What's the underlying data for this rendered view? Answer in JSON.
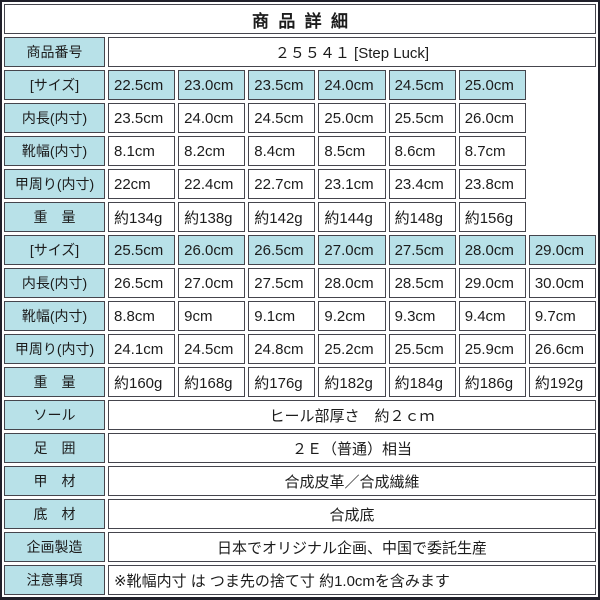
{
  "title": "商品詳細",
  "colors": {
    "header_cell_bg": "#b8e1e8",
    "cell_border": "#45454d",
    "outer_border": "#20202a",
    "text": "#1c1c1c",
    "value_cell_bg": "#ffffff"
  },
  "product_number": {
    "label": "商品番号",
    "value": "２５５４１ [Step Luck]"
  },
  "size_block_small": {
    "size": {
      "label": "[サイズ]",
      "values": [
        "22.5cm",
        "23.0cm",
        "23.5cm",
        "24.0cm",
        "24.5cm",
        "25.0cm"
      ]
    },
    "inner_length": {
      "label": "内長(内寸)",
      "values": [
        "23.5cm",
        "24.0cm",
        "24.5cm",
        "25.0cm",
        "25.5cm",
        "26.0cm"
      ]
    },
    "shoe_width": {
      "label": "靴幅(内寸)",
      "values": [
        "8.1cm",
        "8.2cm",
        "8.4cm",
        "8.5cm",
        "8.6cm",
        "8.7cm"
      ]
    },
    "instep_girth": {
      "label": "甲周り(内寸)",
      "values": [
        "22cm",
        "22.4cm",
        "22.7cm",
        "23.1cm",
        "23.4cm",
        "23.8cm"
      ]
    },
    "weight": {
      "label": "重　量",
      "values": [
        "約134g",
        "約138g",
        "約142g",
        "約144g",
        "約148g",
        "約156g"
      ]
    }
  },
  "size_block_large": {
    "size": {
      "label": "[サイズ]",
      "values": [
        "25.5cm",
        "26.0cm",
        "26.5cm",
        "27.0cm",
        "27.5cm",
        "28.0cm",
        "29.0cm"
      ]
    },
    "inner_length": {
      "label": "内長(内寸)",
      "values": [
        "26.5cm",
        "27.0cm",
        "27.5cm",
        "28.0cm",
        "28.5cm",
        "29.0cm",
        "30.0cm"
      ]
    },
    "shoe_width": {
      "label": "靴幅(内寸)",
      "values": [
        "8.8cm",
        "9cm",
        "9.1cm",
        "9.2cm",
        "9.3cm",
        "9.4cm",
        "9.7cm"
      ]
    },
    "instep_girth": {
      "label": "甲周り(内寸)",
      "values": [
        "24.1cm",
        "24.5cm",
        "24.8cm",
        "25.2cm",
        "25.5cm",
        "25.9cm",
        "26.6cm"
      ]
    },
    "weight": {
      "label": "重　量",
      "values": [
        "約160g",
        "約168g",
        "約176g",
        "約182g",
        "約184g",
        "約186g",
        "約192g"
      ]
    }
  },
  "details": [
    {
      "label": "ソール",
      "value": "ヒール部厚さ　約２ｃｍ"
    },
    {
      "label": "足　囲",
      "value": "２Ｅ（普通）相当"
    },
    {
      "label": "甲　材",
      "value": "合成皮革／合成繊維"
    },
    {
      "label": "底　材",
      "value": "合成底"
    },
    {
      "label": "企画製造",
      "value": "日本でオリジナル企画、中国で委託生産"
    },
    {
      "label": "注意事項",
      "value": "※靴幅内寸 は つま先の捨て寸 約1.0cmを含みます"
    }
  ]
}
